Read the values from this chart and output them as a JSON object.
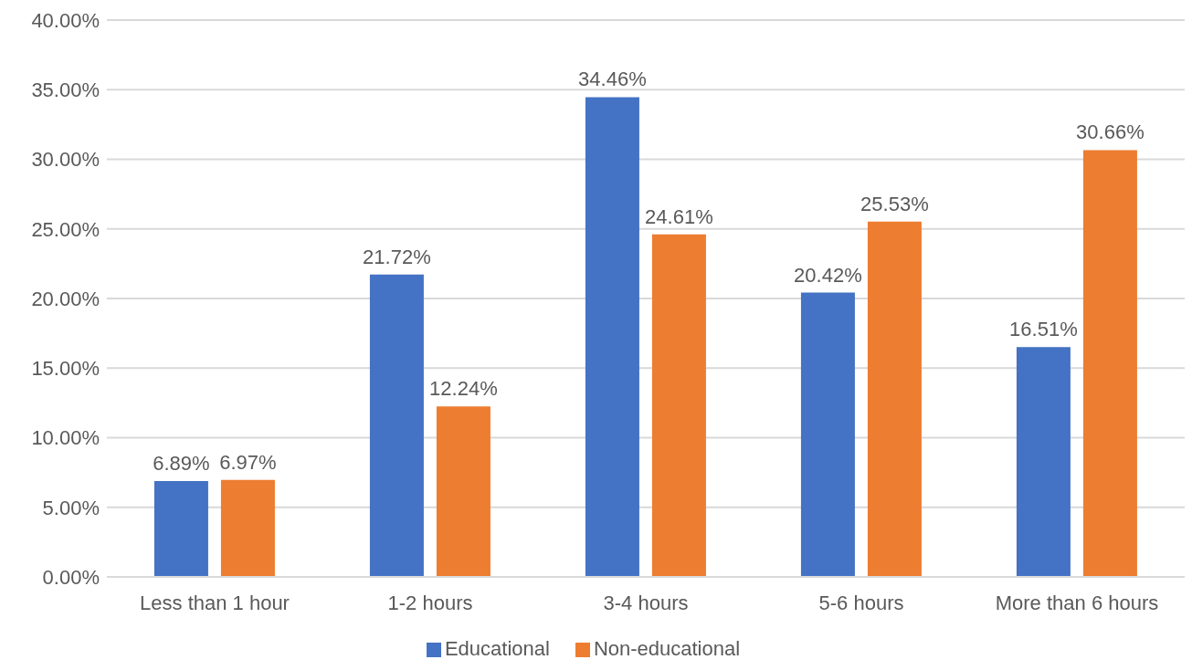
{
  "chart_data": {
    "type": "bar",
    "categories": [
      "Less than 1 hour",
      "1-2 hours",
      "3-4 hours",
      "5-6 hours",
      "More than 6 hours"
    ],
    "series": [
      {
        "name": "Educational",
        "color": "#4472c4",
        "values": [
          6.89,
          21.72,
          34.46,
          20.42,
          16.51
        ],
        "value_labels": [
          "6.89%",
          "21.72%",
          "34.46%",
          "20.42%",
          "16.51%"
        ]
      },
      {
        "name": "Non-educational",
        "color": "#ed7d31",
        "values": [
          6.97,
          12.24,
          24.61,
          25.53,
          30.66
        ],
        "value_labels": [
          "6.97%",
          "12.24%",
          "24.61%",
          "25.53%",
          "30.66%"
        ]
      }
    ],
    "ylim": [
      0,
      40
    ],
    "yticks": [
      {
        "value": 0,
        "label": "0.00%"
      },
      {
        "value": 5,
        "label": "5.00%"
      },
      {
        "value": 10,
        "label": "10.00%"
      },
      {
        "value": 15,
        "label": "15.00%"
      },
      {
        "value": 20,
        "label": "20.00%"
      },
      {
        "value": 25,
        "label": "25.00%"
      },
      {
        "value": 30,
        "label": "30.00%"
      },
      {
        "value": 35,
        "label": "35.00%"
      },
      {
        "value": 40,
        "label": "40.00%"
      }
    ],
    "grid": "y",
    "legend": "bottom"
  }
}
